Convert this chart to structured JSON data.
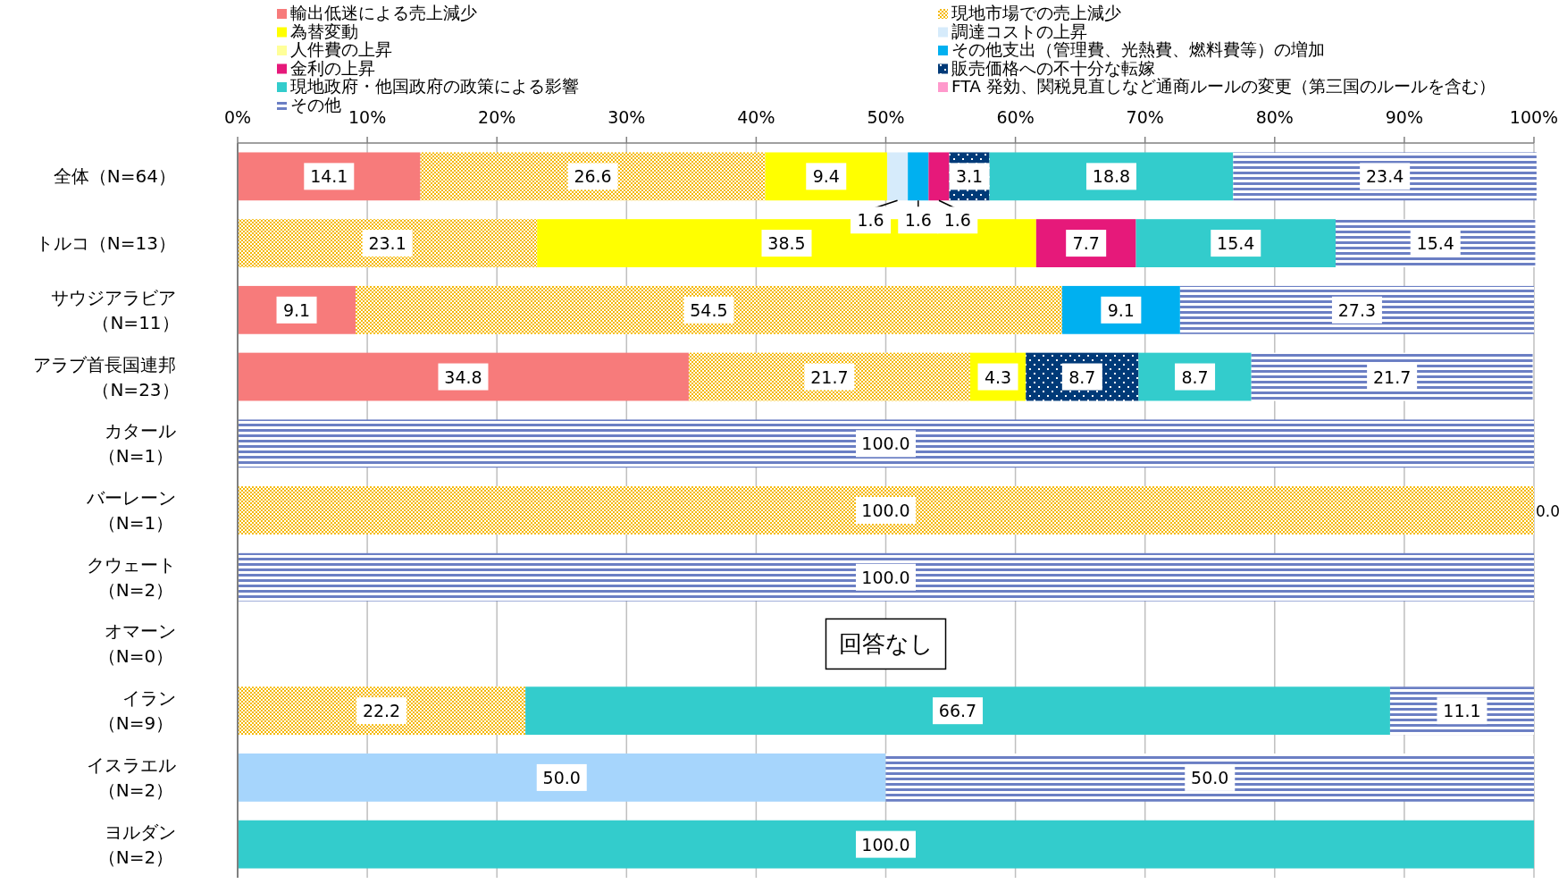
{
  "chart_data": {
    "type": "bar",
    "orientation": "horizontal",
    "stacked": true,
    "legend": "top",
    "grid": "x",
    "categories": [
      "全体（N=64）",
      "トルコ（N=13）",
      "サウジアラビア（N=11）",
      "アラブ首長国連邦（N=23）",
      "カタール（N=1）",
      "バーレーン（N=1）",
      "クウェート（N=2）",
      "オマーン（N=0）",
      "イラン（N=9）",
      "イスラエル（N=2）",
      "ヨルダン（N=2）"
    ],
    "xlim": [
      0,
      100
    ],
    "xticks": [
      {
        "value": 0,
        "label": "0%"
      },
      {
        "value": 10,
        "label": "10%"
      },
      {
        "value": 20,
        "label": "20%"
      },
      {
        "value": 30,
        "label": "30%"
      },
      {
        "value": 40,
        "label": "40%"
      },
      {
        "value": 50,
        "label": "50%"
      },
      {
        "value": 60,
        "label": "60%"
      },
      {
        "value": 70,
        "label": "70%"
      },
      {
        "value": 80,
        "label": "80%"
      },
      {
        "value": 90,
        "label": "90%"
      },
      {
        "value": 100,
        "label": "100%"
      }
    ],
    "annotations": [
      "回答なし"
    ],
    "series": [
      {
        "name": "輸出低迷による売上減少",
        "color": "#f77b7b",
        "values": [
          14.1,
          null,
          9.1,
          34.8,
          null,
          null,
          null,
          null,
          null,
          null,
          null
        ],
        "value_labels": [
          "14.1",
          null,
          "9.1",
          "34.8",
          null,
          null,
          null,
          null,
          null,
          null,
          null
        ]
      },
      {
        "name": "現地市場での売上減少",
        "color": "#f5b800",
        "values": [
          26.6,
          23.1,
          54.5,
          21.7,
          null,
          100.0,
          null,
          null,
          22.2,
          null,
          null
        ],
        "value_labels": [
          "26.6",
          "23.1",
          "54.5",
          "21.7",
          null,
          "100.0",
          null,
          null,
          "22.2",
          null,
          null
        ]
      },
      {
        "name": "為替変動",
        "color": "#ffff00",
        "values": [
          9.4,
          38.5,
          null,
          4.3,
          null,
          null,
          null,
          null,
          null,
          null,
          null
        ],
        "value_labels": [
          "9.4",
          "38.5",
          null,
          "4.3",
          null,
          null,
          null,
          null,
          null,
          null,
          null
        ]
      },
      {
        "name": "調達コストの上昇",
        "color": "#d6ebfb",
        "colors": [
          "#d6ebfb",
          "#d6ebfb",
          "#d6ebfb",
          "#d6ebfb",
          "#d6ebfb",
          "#d6ebfb",
          "#d6ebfb",
          "#d6ebfb",
          "#d6ebfb",
          "#a6d5fc",
          "#d6ebfb"
        ],
        "values": [
          1.6,
          null,
          null,
          null,
          null,
          null,
          null,
          null,
          null,
          50.0,
          null
        ],
        "value_labels": [
          "1.6",
          null,
          null,
          null,
          null,
          null,
          null,
          null,
          null,
          "50.0",
          null
        ]
      },
      {
        "name": "人件費の上昇",
        "color": "#ffff99",
        "values": [
          null,
          null,
          null,
          null,
          null,
          null,
          null,
          null,
          null,
          null,
          null
        ]
      },
      {
        "name": "その他支出（管理費、光熱費、燃料費等）の増加",
        "color": "#00b0f0",
        "values": [
          1.6,
          null,
          9.1,
          null,
          null,
          null,
          null,
          null,
          null,
          null,
          null
        ],
        "value_labels": [
          "1.6",
          null,
          "9.1",
          null,
          null,
          null,
          null,
          null,
          null,
          null,
          null
        ]
      },
      {
        "name": "金利の上昇",
        "color": "#e6197a",
        "values": [
          1.6,
          7.7,
          null,
          null,
          null,
          null,
          null,
          null,
          null,
          null,
          null
        ],
        "value_labels": [
          "1.6",
          "7.7",
          null,
          null,
          null,
          null,
          null,
          null,
          null,
          null,
          null
        ]
      },
      {
        "name": "販売価格への不十分な転嫁",
        "color": "#003a78",
        "values": [
          3.1,
          null,
          null,
          8.7,
          null,
          null,
          null,
          null,
          null,
          null,
          null
        ],
        "value_labels": [
          "3.1",
          null,
          null,
          "8.7",
          null,
          null,
          null,
          null,
          null,
          null,
          null
        ]
      },
      {
        "name": "現地政府・他国政府の政策による影響",
        "color": "#33cccc",
        "values": [
          18.8,
          15.4,
          null,
          8.7,
          null,
          null,
          null,
          null,
          66.7,
          null,
          100.0
        ],
        "value_labels": [
          "18.8",
          "15.4",
          null,
          "8.7",
          null,
          null,
          null,
          null,
          "66.7",
          null,
          "100.0"
        ]
      },
      {
        "name": "FTA 発効、関税見直しなど通商ルールの変更（第三国のルールを含む）",
        "color": "#ff99cc",
        "values": [
          null,
          null,
          null,
          null,
          null,
          null,
          null,
          null,
          null,
          null,
          null
        ]
      },
      {
        "name": "その他",
        "color": "#6b7fc4",
        "values": [
          23.4,
          15.4,
          27.3,
          21.7,
          100.0,
          0.0,
          100.0,
          null,
          11.1,
          50.0,
          null
        ],
        "value_labels": [
          "23.4",
          "15.4",
          "27.3",
          "21.7",
          "100.0",
          "0.0",
          "100.0",
          null,
          "11.1",
          "50.0",
          null
        ]
      }
    ]
  }
}
